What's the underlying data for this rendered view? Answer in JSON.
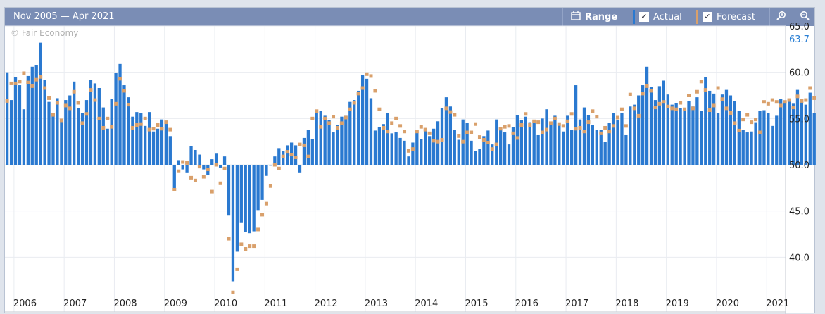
{
  "toolbar": {
    "range_title": "Nov 2005 — Apr 2021",
    "range_button": "Range",
    "actual_label": "Actual",
    "actual_checked": true,
    "forecast_label": "Forecast",
    "forecast_checked": true,
    "icons": [
      "calendar-icon",
      "zoom-in-icon",
      "zoom-out-icon"
    ]
  },
  "watermark": "© Fair Economy",
  "colors": {
    "actual": "#2a79d0",
    "forecast": "#d9a06b",
    "toolbar": "#7a8db5"
  },
  "chart_data": {
    "type": "bar",
    "baseline": 50.0,
    "x_start": "2005-11",
    "x_end": "2021-04",
    "ylim": [
      35.0,
      65.0
    ],
    "y_ticks": [
      "65.0",
      "60.0",
      "55.0",
      "50.0",
      "45.0",
      "40.0"
    ],
    "last_value_label": "63.7",
    "x_ticks": [
      "2006",
      "2007",
      "2008",
      "2009",
      "2010",
      "2011",
      "2012",
      "2013",
      "2014",
      "2015",
      "2016",
      "2017",
      "2018",
      "2019",
      "2020",
      "2021"
    ],
    "series": [
      {
        "name": "Actual",
        "values": [
          60.0,
          57.0,
          59.5,
          58.6,
          56.0,
          59.6,
          60.6,
          60.8,
          63.2,
          59.2,
          56.8,
          55.5,
          57.2,
          54.9,
          57.0,
          57.5,
          59.0,
          56.1,
          55.6,
          57.0,
          59.2,
          58.8,
          58.3,
          56.2,
          53.9,
          57.1,
          59.9,
          60.9,
          58.6,
          57.3,
          55.2,
          55.7,
          55.6,
          54.2,
          55.7,
          53.6,
          53.9,
          54.9,
          54.5,
          53.1,
          47.3,
          50.5,
          49.5,
          49.1,
          52.0,
          51.6,
          51.1,
          49.5,
          48.9,
          50.6,
          51.2,
          49.7,
          50.9,
          44.5,
          37.4,
          40.6,
          43.7,
          42.7,
          42.6,
          42.8,
          45.1,
          46.2,
          48.8,
          49.9,
          50.9,
          51.8,
          51.5,
          52.1,
          52.4,
          52.1,
          49.1,
          52.9,
          53.8,
          52.8,
          55.7,
          55.8,
          55.3,
          54.8,
          53.5,
          54.3,
          55.2,
          55.3,
          56.8,
          57.0,
          58.0,
          59.7,
          59.3,
          57.2,
          53.7,
          54.1,
          54.4,
          55.6,
          53.4,
          53.5,
          52.9,
          52.6,
          50.9,
          52.4,
          53.8,
          52.8,
          53.8,
          53.1,
          53.9,
          54.7,
          56.1,
          57.3,
          56.3,
          53.8,
          52.7,
          54.9,
          54.5,
          52.6,
          51.5,
          51.7,
          53.1,
          53.7,
          52.2,
          54.9,
          53.9,
          53.5,
          52.2,
          54.1,
          55.4,
          54.8,
          55.2,
          54.6,
          54.8,
          53.2,
          55.0,
          56.0,
          54.3,
          55.3,
          54.4,
          53.6,
          55.3,
          53.8,
          58.6,
          54.9,
          56.2,
          55.4,
          54.3,
          53.8,
          53.8,
          52.5,
          54.5,
          55.6,
          54.8,
          55.6,
          53.2,
          56.3,
          56.5,
          57.5,
          58.6,
          60.6,
          58.4,
          57.0,
          58.5,
          59.1,
          57.6,
          56.5,
          56.7,
          56.1,
          56.1,
          56.9,
          56.3,
          57.3,
          55.8,
          59.5,
          58.0,
          57.7,
          55.6,
          57.6,
          58.1,
          57.5,
          56.9,
          55.8,
          53.8,
          53.5,
          53.6,
          54.6,
          55.8,
          55.9,
          55.6,
          54.2,
          55.3,
          57.1,
          56.8,
          57.1,
          56.6,
          58.1,
          56.8,
          56.5,
          57.8,
          55.6,
          56.9,
          56.9,
          57.5,
          57.8,
          57.3,
          57.4,
          56.7,
          58.1,
          56.1,
          56.8,
          56.1,
          59.7,
          60.3,
          59.6,
          57.1,
          57.6,
          59.3,
          59.0,
          57.1,
          59.6,
          58.5,
          57.7,
          58.9,
          61.8,
          59.6,
          60.7,
          59.9,
          58.4,
          56.9,
          56.5,
          56.3,
          58.2,
          55.4,
          56.0,
          55.8,
          54.2,
          55.0,
          54.7,
          54.3,
          52.6,
          53.7,
          54.6,
          53.8,
          54.3,
          54.1,
          53.1,
          54.4,
          57.3,
          52.5,
          42.0,
          45.5,
          52.8,
          57.1,
          58.1,
          57.0,
          57.9,
          57.4,
          56.6,
          57.1,
          55.4,
          58.7,
          63.7
        ]
      },
      {
        "name": "Forecast",
        "values": [
          56.9,
          58.8,
          58.8,
          59.0,
          59.9,
          58.9,
          58.5,
          59.2,
          59.5,
          58.3,
          57.2,
          55.4,
          56.7,
          54.8,
          56.4,
          56.1,
          57.9,
          56.7,
          54.5,
          55.5,
          58.1,
          57.0,
          55.0,
          54.0,
          55.0,
          54.1,
          56.6,
          59.3,
          58.0,
          56.5,
          54.0,
          54.3,
          54.4,
          55.0,
          53.8,
          53.9,
          54.3,
          53.9,
          54.6,
          53.8,
          47.3,
          49.3,
          50.3,
          50.2,
          48.6,
          48.3,
          49.8,
          48.7,
          49.5,
          47.1,
          50.0,
          48.0,
          49.6,
          42.0,
          36.2,
          38.7,
          41.4,
          40.9,
          41.2,
          41.2,
          43.0,
          44.6,
          45.8,
          47.7,
          50.0,
          49.6,
          50.9,
          51.4,
          51.1,
          50.8,
          52.2,
          52.1,
          50.9,
          55.0,
          55.8,
          54.1,
          55.0,
          54.5,
          55.2,
          54.0,
          54.5,
          55.1,
          56.0,
          56.7,
          57.7,
          58.3,
          59.8,
          59.6,
          58.0,
          56.0,
          54.0,
          53.6,
          54.5,
          55.0,
          54.2,
          53.6,
          51.5,
          51.7,
          53.6,
          54.1,
          53.8,
          53.4,
          52.6,
          52.5,
          52.7,
          56.1,
          55.7,
          55.4,
          53.1,
          52.5,
          53.5,
          53.5,
          54.4,
          53.0,
          52.7,
          52.4,
          51.7,
          52.2,
          53.9,
          54.1,
          54.2,
          53.4,
          52.9,
          54.3,
          55.5,
          54.3,
          54.7,
          54.6,
          53.5,
          53.8,
          54.5,
          55.0,
          54.4,
          54.2,
          54.7,
          55.5,
          53.9,
          54.0,
          53.6,
          54.6,
          55.8,
          55.2,
          53.4,
          54.0,
          53.6,
          54.2,
          55.1,
          56.0,
          54.2,
          57.6,
          56.1,
          55.3,
          57.7,
          58.5,
          58.0,
          56.2,
          56.6,
          56.8,
          56.3,
          56.1,
          56.0,
          56.7,
          56.0,
          57.5,
          56.1,
          57.9,
          59.0,
          58.1,
          55.9,
          56.4,
          58.3,
          57.1,
          56.1,
          55.6,
          54.5,
          53.7,
          54.9,
          55.4,
          54.6,
          54.9,
          53.5,
          56.8,
          56.6,
          57.0,
          56.8,
          56.4,
          56.8,
          57.0,
          56.2,
          57.4,
          56.9,
          57.0,
          58.3,
          57.2,
          56.5,
          58.0,
          56.6,
          55.3,
          56.2,
          58.3,
          57.5,
          59.4,
          58.6,
          56.2,
          57.6,
          58.8,
          58.1,
          59.4,
          59.0,
          57.9,
          58.8,
          59.1,
          59.8,
          59.3,
          58.0,
          57.9,
          58.0,
          55.5,
          57.2,
          55.4,
          56.0,
          54.0,
          55.8,
          55.0,
          55.1,
          53.6,
          54.6,
          54.0,
          53.1,
          54.7,
          54.5,
          53.1,
          53.9,
          54.0,
          54.9,
          43.2,
          37.3,
          44.0,
          49.6,
          55.6,
          57.2,
          57.5,
          56.4,
          56.9,
          56.0,
          56.6,
          58.0,
          58.6,
          58.0
        ]
      }
    ]
  }
}
